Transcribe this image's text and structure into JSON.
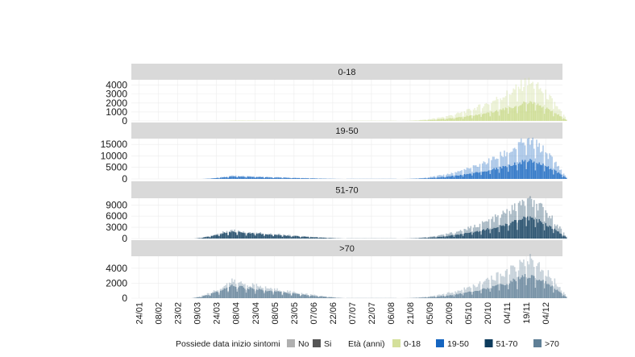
{
  "chart_data": {
    "type": "bar",
    "stacked": true,
    "x_ticks": [
      "24/01",
      "08/02",
      "23/02",
      "09/03",
      "24/03",
      "08/04",
      "23/04",
      "08/05",
      "23/05",
      "07/06",
      "22/06",
      "07/07",
      "22/07",
      "06/08",
      "21/08",
      "05/09",
      "20/09",
      "05/10",
      "20/10",
      "04/11",
      "19/11",
      "04/12"
    ],
    "legend": {
      "sintomi_title": "Possiede data inizio sintomi",
      "sintomi_items": [
        {
          "label": "No",
          "color": "#b0b0b0"
        },
        {
          "label": "Si",
          "color": "#555555"
        }
      ],
      "eta_title": "Età (anni)",
      "eta_items": [
        {
          "label": "0-18",
          "color": "#d4e09b"
        },
        {
          "label": "19-50",
          "color": "#1565c0"
        },
        {
          "label": "51-70",
          "color": "#0d3b5c"
        },
        {
          "label": ">70",
          "color": "#5f7f96"
        }
      ]
    },
    "panels": [
      {
        "label": "0-18",
        "color": "#c9d98a",
        "yticks": [
          0,
          1000,
          2000,
          3000,
          4000
        ],
        "ylim": [
          0,
          4600
        ],
        "peak_total": 4400,
        "peak_si": 2100,
        "wave1": {
          "start_day": 60,
          "peak_day": 75,
          "end_day": 150,
          "peak_total": 40,
          "peak_si": 25
        },
        "wave2": {
          "start_day": 200,
          "peak_day": 300,
          "end_day": 332
        }
      },
      {
        "label": "19-50",
        "color": "#1565c0",
        "yticks": [
          0,
          5000,
          10000,
          15000
        ],
        "ylim": [
          0,
          17500
        ],
        "peak_total": 16800,
        "peak_si": 8200,
        "wave1": {
          "start_day": 48,
          "peak_day": 72,
          "end_day": 160,
          "peak_total": 1400,
          "peak_si": 1100
        },
        "wave2": {
          "start_day": 200,
          "peak_day": 300,
          "end_day": 332
        }
      },
      {
        "label": "51-70",
        "color": "#0d3b5c",
        "yticks": [
          0,
          3000,
          6000,
          9000
        ],
        "ylim": [
          0,
          10800
        ],
        "peak_total": 10300,
        "peak_si": 5600,
        "wave1": {
          "start_day": 42,
          "peak_day": 70,
          "end_day": 160,
          "peak_total": 2300,
          "peak_si": 1900
        },
        "wave2": {
          "start_day": 200,
          "peak_day": 300,
          "end_day": 332
        }
      },
      {
        "label": ">70",
        "color": "#5f7f96",
        "yticks": [
          0,
          2000,
          4000
        ],
        "ylim": [
          0,
          5600
        ],
        "peak_total": 5300,
        "peak_si": 3000,
        "wave1": {
          "start_day": 40,
          "peak_day": 72,
          "end_day": 160,
          "peak_total": 2300,
          "peak_si": 1700
        },
        "wave2": {
          "start_day": 200,
          "peak_day": 300,
          "end_day": 332
        }
      }
    ]
  }
}
